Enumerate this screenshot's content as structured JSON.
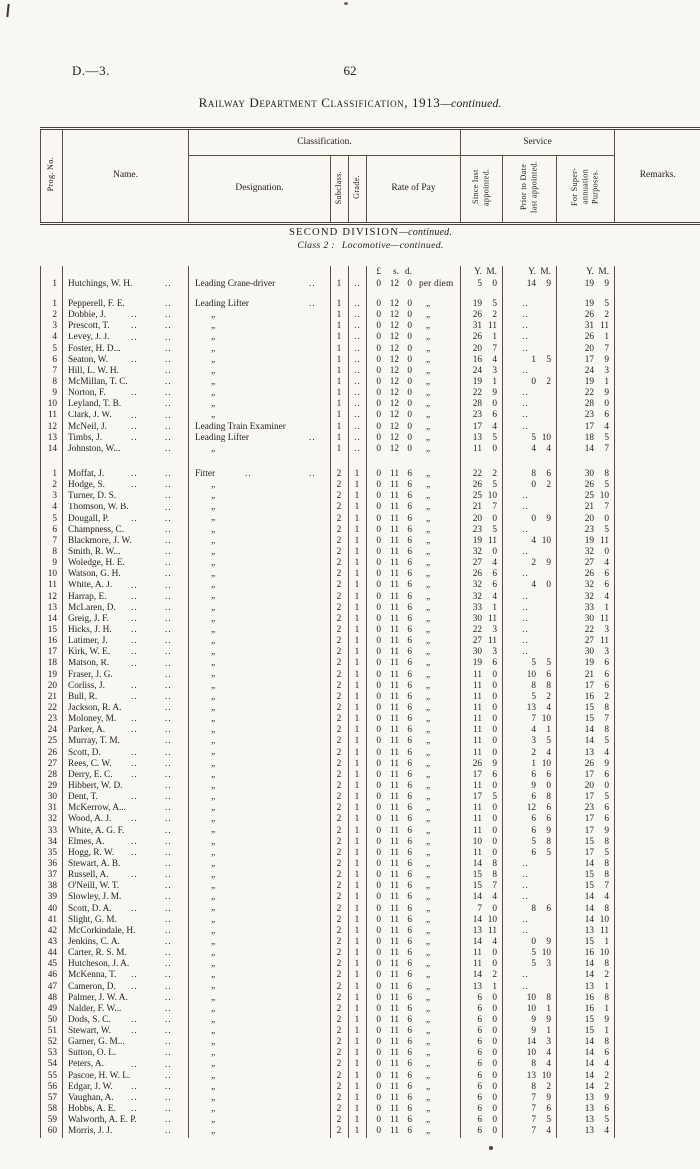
{
  "colors": {
    "paper": "#f9f7f1",
    "ink": "#24211c"
  },
  "page": {
    "doc_ref": "D.—3.",
    "page_number": "62",
    "title": "Railway Department Classification, 1913",
    "title_continued": "—continued."
  },
  "table": {
    "headers": {
      "prog_no": "Prog. No.",
      "name": "Name.",
      "classification": "Classification.",
      "designation": "Designation.",
      "subclass": "Subclass.",
      "grade": "Grade.",
      "rate_of_pay": "Rate of Pay",
      "service": "Service",
      "since_last": "Since last appointed.",
      "prior_to": "Prior to Date last appointed.",
      "superannuation": "For Super-annuation Purposes.",
      "remarks": "Remarks."
    },
    "section": {
      "division": "SECOND DIVISION",
      "division_cont": "—continued.",
      "class_label": "Class 2 :",
      "class_rest": "Locomotive—continued."
    },
    "units": {
      "pay": [
        "£",
        "s.",
        "d."
      ],
      "ym": [
        "Y.",
        "M."
      ]
    },
    "ditto": "„",
    "leader": "..",
    "groups": [
      {
        "sub": "1",
        "grade": "..",
        "pay": "0 12 0",
        "pd": "per diem",
        "units": true,
        "rows": [
          [
            "1",
            "Hutchings, W. H.",
            "5 0",
            "14 9",
            "19 9",
            "Leading Crane-driver"
          ]
        ]
      },
      {
        "sub": "1",
        "grade": "..",
        "pay": "0 12 0",
        "pd": "„",
        "rows": [
          [
            "1",
            "Pepperell, F. E.",
            "19 5",
            "..",
            "19 5",
            "Leading Lifter"
          ],
          [
            "2",
            "Dobbie, J.",
            "26 2",
            "..",
            "26 2"
          ],
          [
            "3",
            "Prescott, T.",
            "31 11",
            "..",
            "31 11"
          ],
          [
            "4",
            "Levey, J. J.",
            "26 1",
            "..",
            "26 1"
          ],
          [
            "5",
            "Foster, H. D...",
            "20 7",
            "..",
            "20 7"
          ],
          [
            "6",
            "Seaton, W.",
            "16 4",
            "1 5",
            "17 9"
          ],
          [
            "7",
            "Hill, L. W. H.",
            "24 3",
            "..",
            "24 3"
          ],
          [
            "8",
            "McMillan, T. C.",
            "19 1",
            "0 2",
            "19 1"
          ],
          [
            "9",
            "Norton, F.",
            "22 9",
            "..",
            "22 9"
          ],
          [
            "10",
            "Leyland, T. B.",
            "28 0",
            "..",
            "28 0"
          ],
          [
            "11",
            "Clark, J. W.",
            "23 6",
            "..",
            "23 6"
          ],
          [
            "12",
            "McNeil, J.",
            "17 4",
            "..",
            "17 4",
            "Leading Train Examiner"
          ],
          [
            "13",
            "Timbs, J.",
            "13 5",
            "5 10",
            "18 5",
            "Leading Lifter"
          ],
          [
            "14",
            "Johnston, W...",
            "11 0",
            "4 4",
            "14 7"
          ]
        ]
      },
      {
        "sub": "2",
        "grade": "1",
        "pay": "0 11 6",
        "pd": "„",
        "rows": [
          [
            "1",
            "Moffat, J.",
            "22 2",
            "8 6",
            "30 8",
            "Fitter"
          ],
          [
            "2",
            "Hodge, S.",
            "26 5",
            "0 2",
            "26 5"
          ],
          [
            "3",
            "Turner, D. S.",
            "25 10",
            "..",
            "25 10"
          ],
          [
            "4",
            "Thomson, W. B.",
            "21 7",
            "..",
            "21 7"
          ],
          [
            "5",
            "Dougall, P.",
            "20 0",
            "0 9",
            "20 0"
          ],
          [
            "6",
            "Champness, C.",
            "23 5",
            "..",
            "23 5"
          ],
          [
            "7",
            "Blackmore, J. W.",
            "19 11",
            "4 10",
            "19 11"
          ],
          [
            "8",
            "Smith, R. W...",
            "32 0",
            "..",
            "32 0"
          ],
          [
            "9",
            "Woledge, H. E.",
            "27 4",
            "2 9",
            "27 4"
          ],
          [
            "10",
            "Watson, G. H.",
            "26 6",
            "..",
            "26 6"
          ],
          [
            "11",
            "White, A. J.",
            "32 6",
            "4 0",
            "32 6"
          ],
          [
            "12",
            "Harrap, E.",
            "32 4",
            "..",
            "32 4"
          ],
          [
            "13",
            "McLaren, D.",
            "33 1",
            "..",
            "33 1"
          ],
          [
            "14",
            "Greig, J. F.",
            "30 11",
            "..",
            "30 11"
          ],
          [
            "15",
            "Hicks, J. H.",
            "22 3",
            "..",
            "22 3"
          ],
          [
            "16",
            "Latimer, J.",
            "27 11",
            "..",
            "27 11"
          ],
          [
            "17",
            "Kirk, W. E.",
            "30 3",
            "..",
            "30 3"
          ],
          [
            "18",
            "Matson, R.",
            "19 6",
            "5 5",
            "19 6"
          ],
          [
            "19",
            "Fraser, J. G.",
            "11 0",
            "10 6",
            "21 6"
          ],
          [
            "20",
            "Corliss, J.",
            "11 0",
            "8 8",
            "17 6"
          ],
          [
            "21",
            "Bull, R.",
            "11 0",
            "5 2",
            "16 2"
          ],
          [
            "22",
            "Jackson, R. A.",
            "11 0",
            "13 4",
            "15 8"
          ],
          [
            "23",
            "Moloney, M.",
            "11 0",
            "7 10",
            "15 7"
          ],
          [
            "24",
            "Parker, A.",
            "11 0",
            "4 1",
            "14 8"
          ],
          [
            "25",
            "Murray, T. M.",
            "11 0",
            "3 5",
            "14 5"
          ],
          [
            "26",
            "Scott, D.",
            "11 0",
            "2 4",
            "13 4"
          ],
          [
            "27",
            "Rees, C. W.",
            "26 9",
            "1 10",
            "26 9"
          ],
          [
            "28",
            "Derry, E. C.",
            "17 6",
            "6 6",
            "17 6"
          ],
          [
            "29",
            "Hibbert, W. D.",
            "11 0",
            "9 0",
            "20 0"
          ],
          [
            "30",
            "Dent, T.",
            "17 5",
            "6 8",
            "17 5"
          ],
          [
            "31",
            "McKerrow, A...",
            "11 0",
            "12 6",
            "23 6"
          ],
          [
            "32",
            "Wood, A. J.",
            "11 0",
            "6 6",
            "17 6"
          ],
          [
            "33",
            "White, A. G. F.",
            "11 0",
            "6 9",
            "17 9"
          ],
          [
            "34",
            "Elmes, A.",
            "10 0",
            "5 8",
            "15 8"
          ],
          [
            "35",
            "Hogg, R. W.",
            "11 0",
            "6 5",
            "17 5"
          ],
          [
            "36",
            "Stewart, A. B.",
            "14 8",
            "..",
            "14 8"
          ],
          [
            "37",
            "Russell, A.",
            "15 8",
            "..",
            "15 8"
          ],
          [
            "38",
            "O'Neill, W. T.",
            "15 7",
            "..",
            "15 7"
          ],
          [
            "39",
            "Slowley, J. M.",
            "14 4",
            "..",
            "14 4"
          ],
          [
            "40",
            "Scott, D. A.",
            "7 0",
            "8 6",
            "14 8"
          ],
          [
            "41",
            "Slight, G. M.",
            "14 10",
            "..",
            "14 10"
          ],
          [
            "42",
            "McCorkindale, H.",
            "13 11",
            "..",
            "13 11"
          ],
          [
            "43",
            "Jenkins, C. A.",
            "14 4",
            "0 9",
            "15 1"
          ],
          [
            "44",
            "Carter, R. S. M.",
            "11 0",
            "5 10",
            "16 10"
          ],
          [
            "45",
            "Hutcheson, J. A.",
            "11 0",
            "5 3",
            "14 8"
          ],
          [
            "46",
            "McKenna, T.",
            "14 2",
            "..",
            "14 2"
          ],
          [
            "47",
            "Cameron, D.",
            "13 1",
            "..",
            "13 1"
          ],
          [
            "48",
            "Palmer, J. W. A.",
            "6 0",
            "10 8",
            "16 8"
          ],
          [
            "49",
            "Nalder, F. W...",
            "6 0",
            "10 1",
            "16 1"
          ],
          [
            "50",
            "Dods, S. C.",
            "6 0",
            "9 9",
            "15 9"
          ],
          [
            "51",
            "Stewart, W.",
            "6 0",
            "9 1",
            "15 1"
          ],
          [
            "52",
            "Garner, G. M...",
            "6 0",
            "14 3",
            "14 8"
          ],
          [
            "53",
            "Sutton, O. L.",
            "6 0",
            "10 4",
            "14 6"
          ],
          [
            "54",
            "Peters, A.",
            "6 0",
            "8 4",
            "14 4"
          ],
          [
            "55",
            "Pascoe, H. W. L.",
            "6 0",
            "13 10",
            "14 2"
          ],
          [
            "56",
            "Edgar, J. W.",
            "6 0",
            "8 2",
            "14 2"
          ],
          [
            "57",
            "Vaughan, A.",
            "6 0",
            "7 9",
            "13 9"
          ],
          [
            "58",
            "Hobbs, A. E.",
            "6 0",
            "7 6",
            "13 6"
          ],
          [
            "59",
            "Walworth, A. E. P.",
            "6 0",
            "7 5",
            "13 5"
          ],
          [
            "60",
            "Morris, J. J.",
            "6 0",
            "7 4",
            "13 4"
          ]
        ]
      }
    ]
  }
}
